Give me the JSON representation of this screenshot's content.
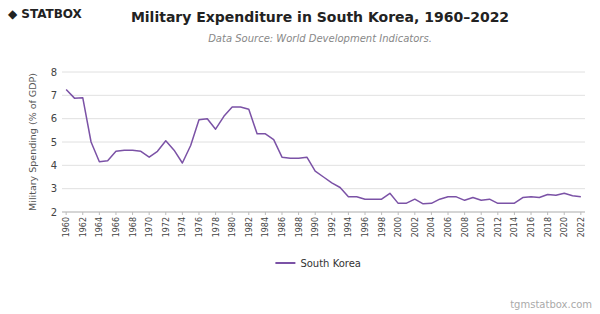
{
  "chart_data": {
    "type": "line",
    "title": "Military Expenditure in South Korea, 1960–2022",
    "subtitle": "Data Source: World Development Indicators.",
    "ylabel": "Military Spending (% of GDP)",
    "annotations": [
      "◆",
      "STAT",
      "BOX",
      "tgmstatbox.com"
    ],
    "x": [
      1960,
      1961,
      1962,
      1963,
      1964,
      1965,
      1966,
      1967,
      1968,
      1969,
      1970,
      1971,
      1972,
      1973,
      1974,
      1975,
      1976,
      1977,
      1978,
      1979,
      1980,
      1981,
      1982,
      1983,
      1984,
      1985,
      1986,
      1987,
      1988,
      1989,
      1990,
      1991,
      1992,
      1993,
      1994,
      1995,
      1996,
      1997,
      1998,
      1999,
      2000,
      2001,
      2002,
      2003,
      2004,
      2005,
      2006,
      2007,
      2008,
      2009,
      2010,
      2011,
      2012,
      2013,
      2014,
      2015,
      2016,
      2017,
      2018,
      2019,
      2020,
      2021,
      2022
    ],
    "series": [
      {
        "name": "South Korea",
        "color": "#7B52A6",
        "values": [
          7.25,
          6.88,
          6.9,
          5.0,
          4.15,
          4.2,
          4.6,
          4.65,
          4.65,
          4.6,
          4.35,
          4.6,
          5.05,
          4.65,
          4.1,
          4.85,
          5.95,
          6.0,
          5.55,
          6.1,
          6.5,
          6.5,
          6.4,
          5.35,
          5.35,
          5.1,
          4.35,
          4.3,
          4.3,
          4.35,
          3.75,
          3.5,
          3.25,
          3.05,
          2.65,
          2.65,
          2.55,
          2.55,
          2.55,
          2.8,
          2.37,
          2.38,
          2.55,
          2.35,
          2.37,
          2.55,
          2.65,
          2.65,
          2.5,
          2.62,
          2.5,
          2.55,
          2.37,
          2.37,
          2.38,
          2.62,
          2.65,
          2.62,
          2.75,
          2.72,
          2.8,
          2.7,
          2.65
        ]
      }
    ],
    "xlim": [
      1959.5,
      2022.5
    ],
    "xticks": [
      1960,
      1962,
      1964,
      1966,
      1968,
      1970,
      1972,
      1974,
      1976,
      1978,
      1980,
      1982,
      1984,
      1986,
      1988,
      1990,
      1992,
      1994,
      1996,
      1998,
      2000,
      2002,
      2004,
      2006,
      2008,
      2010,
      2012,
      2014,
      2016,
      2018,
      2020,
      2022
    ],
    "ylim": [
      2,
      8
    ],
    "yticks": [
      2,
      3,
      4,
      5,
      6,
      7,
      8
    ],
    "grid": true,
    "legend": "bottom"
  }
}
